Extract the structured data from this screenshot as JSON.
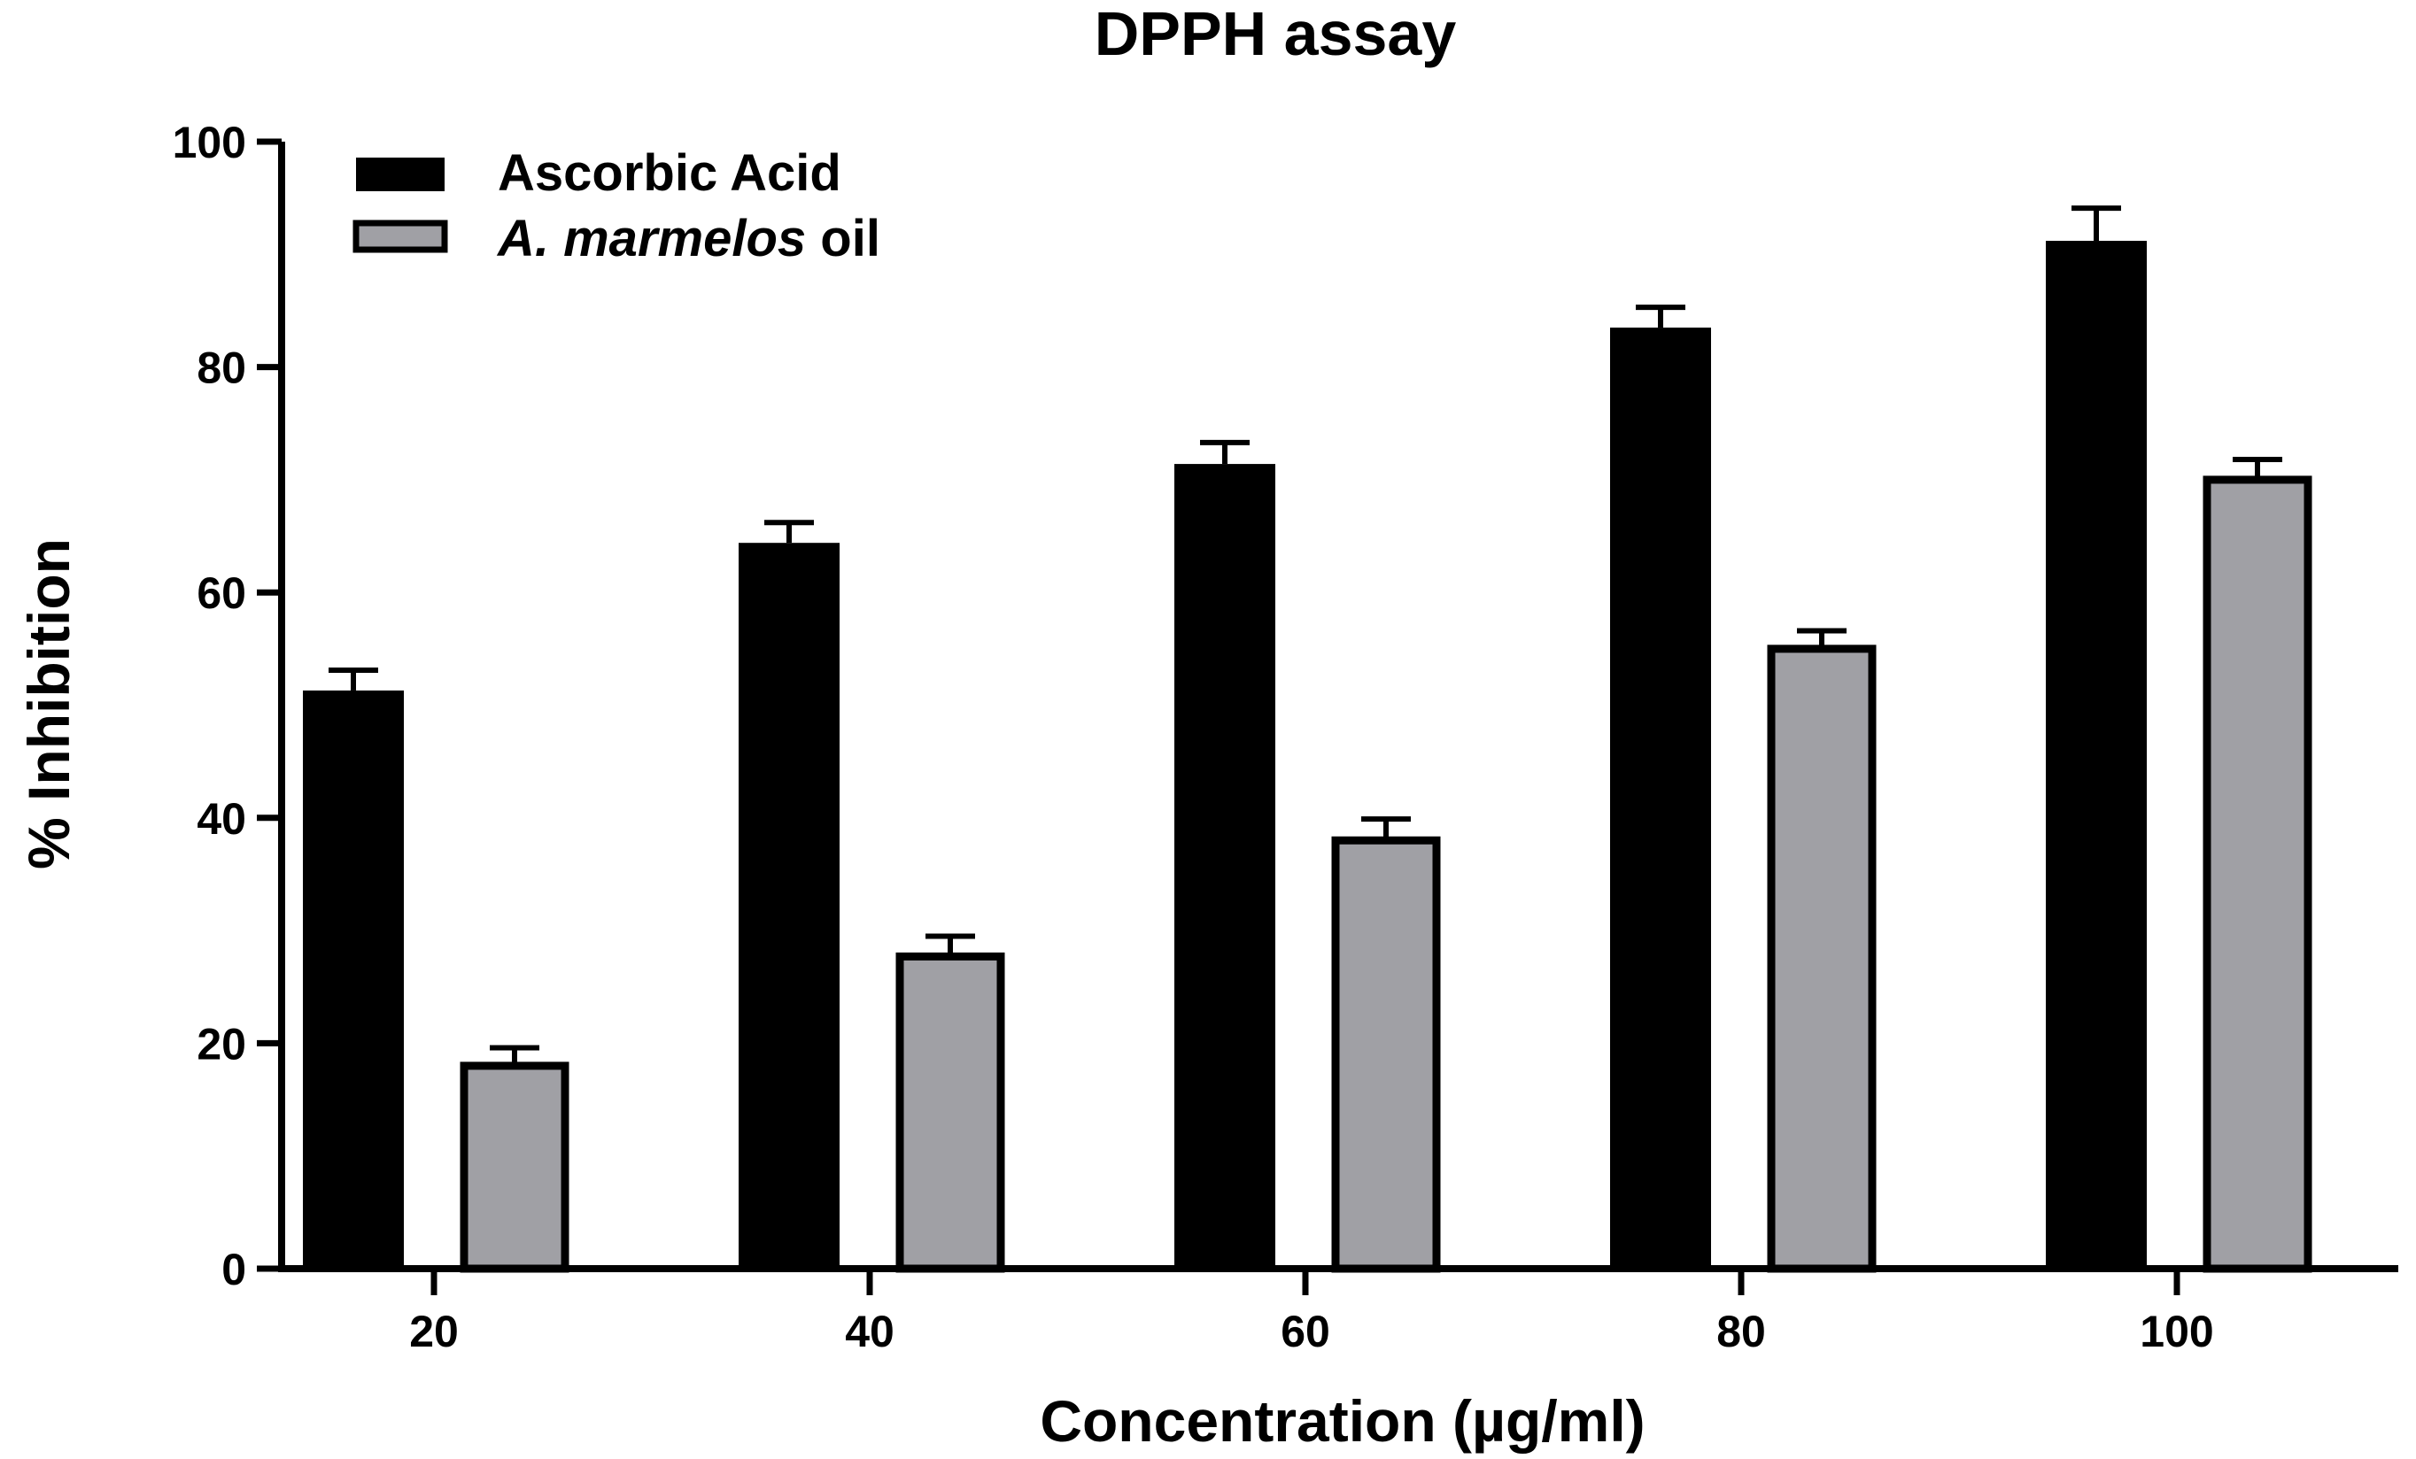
{
  "chart_data": {
    "type": "bar",
    "title": "DPPH assay",
    "xlabel": "Concentration (µg/ml)",
    "ylabel": "% Inhibition",
    "categories": [
      "20",
      "40",
      "60",
      "80",
      "100"
    ],
    "ylim": [
      0,
      100
    ],
    "yticks": [
      "0",
      "20",
      "40",
      "60",
      "80",
      "100"
    ],
    "series": [
      {
        "name": "Ascorbic Acid",
        "legend_parts": [
          {
            "text": "Ascorbic Acid",
            "italic": false
          }
        ],
        "color": "#000000",
        "values": [
          51.3,
          64.4,
          71.4,
          83.5,
          91.2
        ],
        "errors": [
          1.8,
          1.8,
          1.9,
          1.8,
          2.9
        ]
      },
      {
        "name": "A. marmelos oil",
        "legend_parts": [
          {
            "text": "A. marmelos",
            "italic": true
          },
          {
            "text": " oil",
            "italic": false
          }
        ],
        "color": "#a0a0a5",
        "values": [
          18.0,
          27.7,
          38.0,
          55.0,
          70.0
        ],
        "errors": [
          1.6,
          1.8,
          1.9,
          1.6,
          1.8
        ]
      }
    ],
    "legend_position": "top-left",
    "grid": false
  }
}
